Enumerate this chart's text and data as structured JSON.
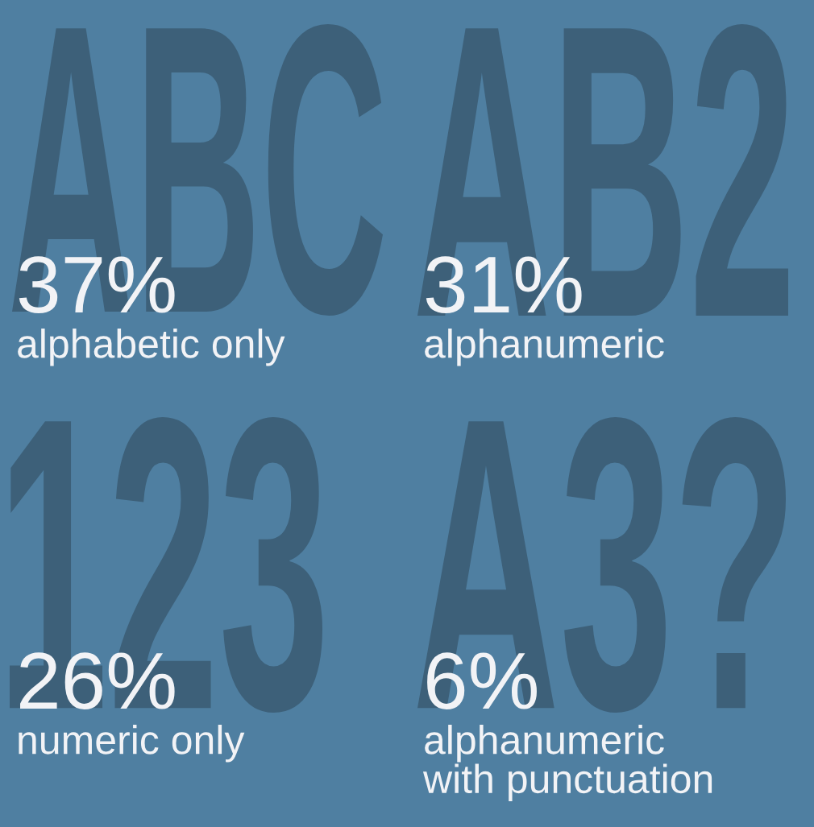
{
  "chart_data": {
    "type": "other",
    "categories": [
      "alphabetic only",
      "alphanumeric",
      "numeric only",
      "alphanumeric\nwith punctuation"
    ],
    "values": [
      37,
      31,
      26,
      6
    ],
    "value_labels": [
      "37%",
      "31%",
      "26%",
      "6%"
    ]
  }
}
